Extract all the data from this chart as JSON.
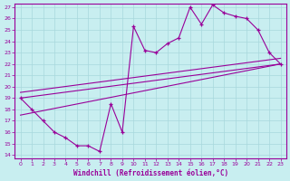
{
  "xlabel": "Windchill (Refroidissement éolien,°C)",
  "bg_color": "#c8eef0",
  "grid_color": "#a8d8dc",
  "line_color": "#990099",
  "xlim_min": -0.5,
  "xlim_max": 23.5,
  "ylim_min": 13.7,
  "ylim_max": 27.3,
  "xticks": [
    0,
    1,
    2,
    3,
    4,
    5,
    6,
    7,
    8,
    9,
    10,
    11,
    12,
    13,
    14,
    15,
    16,
    17,
    18,
    19,
    20,
    21,
    22,
    23
  ],
  "yticks": [
    14,
    15,
    16,
    17,
    18,
    19,
    20,
    21,
    22,
    23,
    24,
    25,
    26,
    27
  ],
  "curve_x": [
    0,
    1,
    2,
    3,
    4,
    5,
    6,
    7,
    8,
    9,
    10,
    11,
    12,
    13,
    14,
    15,
    16,
    17,
    18,
    19,
    20,
    21,
    22,
    23
  ],
  "curve_y": [
    19.0,
    18.0,
    17.0,
    16.0,
    15.5,
    14.8,
    14.8,
    14.3,
    18.5,
    16.0,
    25.3,
    23.2,
    23.0,
    23.8,
    24.3,
    27.0,
    25.5,
    27.2,
    26.5,
    26.2,
    26.0,
    25.0,
    23.0,
    22.0
  ],
  "line1_x": [
    0,
    23
  ],
  "line1_y": [
    19.0,
    22.0
  ],
  "line2_x": [
    0,
    23
  ],
  "line2_y": [
    19.5,
    22.5
  ],
  "line3_x": [
    0,
    23
  ],
  "line3_y": [
    17.5,
    22.0
  ]
}
